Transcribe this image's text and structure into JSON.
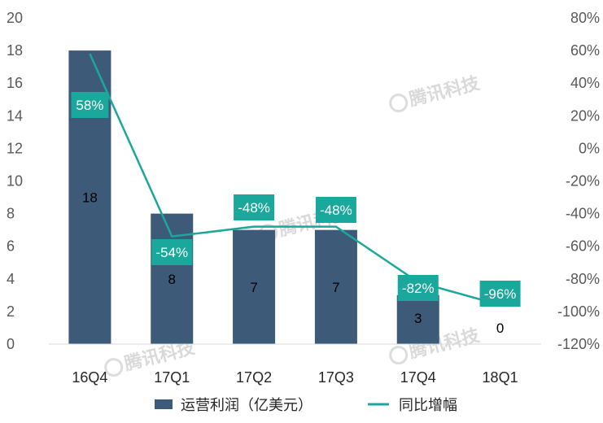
{
  "chart_data": {
    "type": "bar",
    "categories": [
      "16Q4",
      "17Q1",
      "17Q2",
      "17Q3",
      "17Q4",
      "18Q1"
    ],
    "series": [
      {
        "name": "运营利润（亿美元）",
        "type": "bar",
        "axis": "left",
        "values": [
          18,
          8,
          7,
          7,
          3,
          0
        ],
        "labels": [
          "18",
          "8",
          "7",
          "7",
          "3",
          "0"
        ]
      },
      {
        "name": "同比增幅",
        "type": "line",
        "axis": "right",
        "values": [
          58,
          -54,
          -48,
          -48,
          -82,
          -96
        ],
        "labels": [
          "58%",
          "-54%",
          "-48%",
          "-48%",
          "-82%",
          "-96%"
        ]
      }
    ],
    "y_left": {
      "ylim": [
        0,
        20
      ],
      "ticks": [
        "0",
        "2",
        "4",
        "6",
        "8",
        "10",
        "12",
        "14",
        "16",
        "18",
        "20"
      ]
    },
    "y_right": {
      "ylim": [
        -120,
        80
      ],
      "ticks": [
        "-120%",
        "-100%",
        "-80%",
        "-60%",
        "-40%",
        "-20%",
        "0%",
        "20%",
        "40%",
        "60%",
        "80%"
      ]
    },
    "grid": false,
    "legend": "bottom",
    "colors": {
      "bar": "#3d5a78",
      "line": "#1aa89c",
      "label_box": "#1aa89c"
    }
  },
  "watermark": "腾讯科技"
}
